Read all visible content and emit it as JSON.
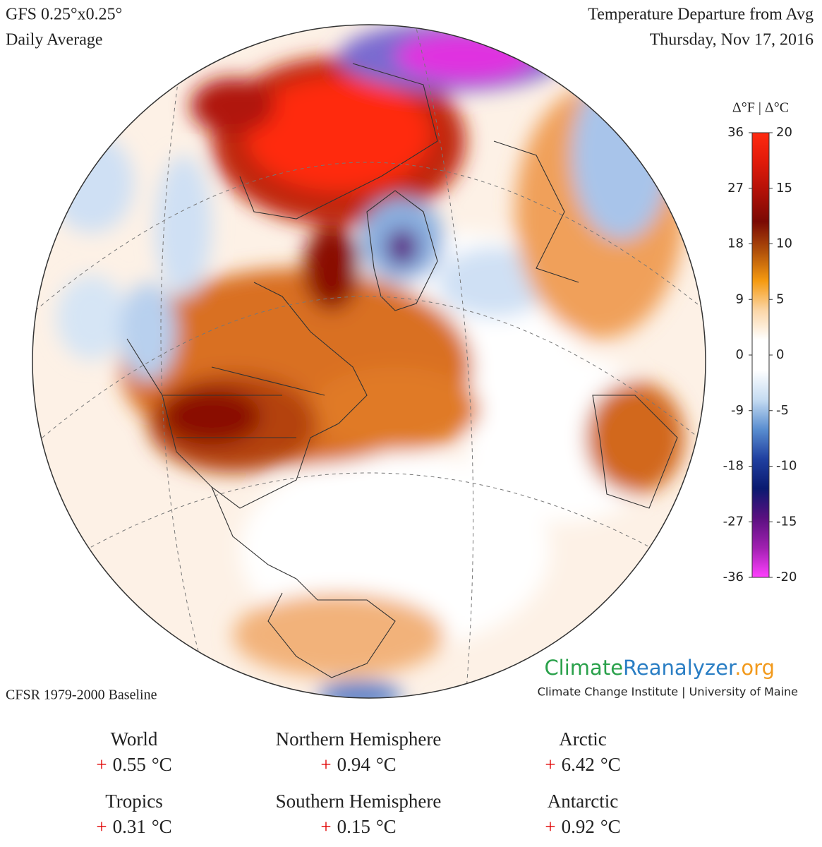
{
  "header": {
    "model": "GFS 0.25°x0.25°",
    "period": "Daily Average",
    "title": "Temperature Departure from Avg",
    "date": "Thursday, Nov 17, 2016"
  },
  "baseline": "CFSR 1979-2000 Baseline",
  "brand": {
    "parts": [
      {
        "text": "Climate",
        "color": "#2aa14b"
      },
      {
        "text": "Reanalyzer",
        "color": "#2a7ec4"
      },
      {
        "text": ".org",
        "color": "#f29a1d"
      }
    ],
    "subtitle": "Climate Change Institute | University of Maine"
  },
  "colorbar": {
    "title": "Δ°F | Δ°C",
    "f_lim": [
      -36,
      36
    ],
    "c_lim": [
      -20,
      20
    ],
    "f_ticks": [
      36,
      27,
      18,
      9,
      0,
      -9,
      -18,
      -27,
      -36
    ],
    "c_ticks": [
      20,
      15,
      10,
      5,
      0,
      -5,
      -10,
      -15,
      -20
    ],
    "colors": [
      "#ff2a10",
      "#e01a0a",
      "#b01008",
      "#7a0a04",
      "#b0500a",
      "#f59a10",
      "#fbd6a8",
      "#ffffff",
      "#ffffff",
      "#c6dcf2",
      "#5a8ed0",
      "#2040a0",
      "#0a1a70",
      "#5a1080",
      "#a020b0",
      "#ff40ff"
    ]
  },
  "stats": [
    {
      "name": "World",
      "sign": "+",
      "value": 0.55,
      "unit": "°C"
    },
    {
      "name": "Northern Hemisphere",
      "sign": "+",
      "value": 0.94,
      "unit": "°C"
    },
    {
      "name": "Arctic",
      "sign": "+",
      "value": 6.42,
      "unit": "°C"
    },
    {
      "name": "Tropics",
      "sign": "+",
      "value": 0.31,
      "unit": "°C"
    },
    {
      "name": "Southern Hemisphere",
      "sign": "+",
      "value": 0.15,
      "unit": "°C"
    },
    {
      "name": "Antarctic",
      "sign": "+",
      "value": 0.92,
      "unit": "°C"
    }
  ]
}
